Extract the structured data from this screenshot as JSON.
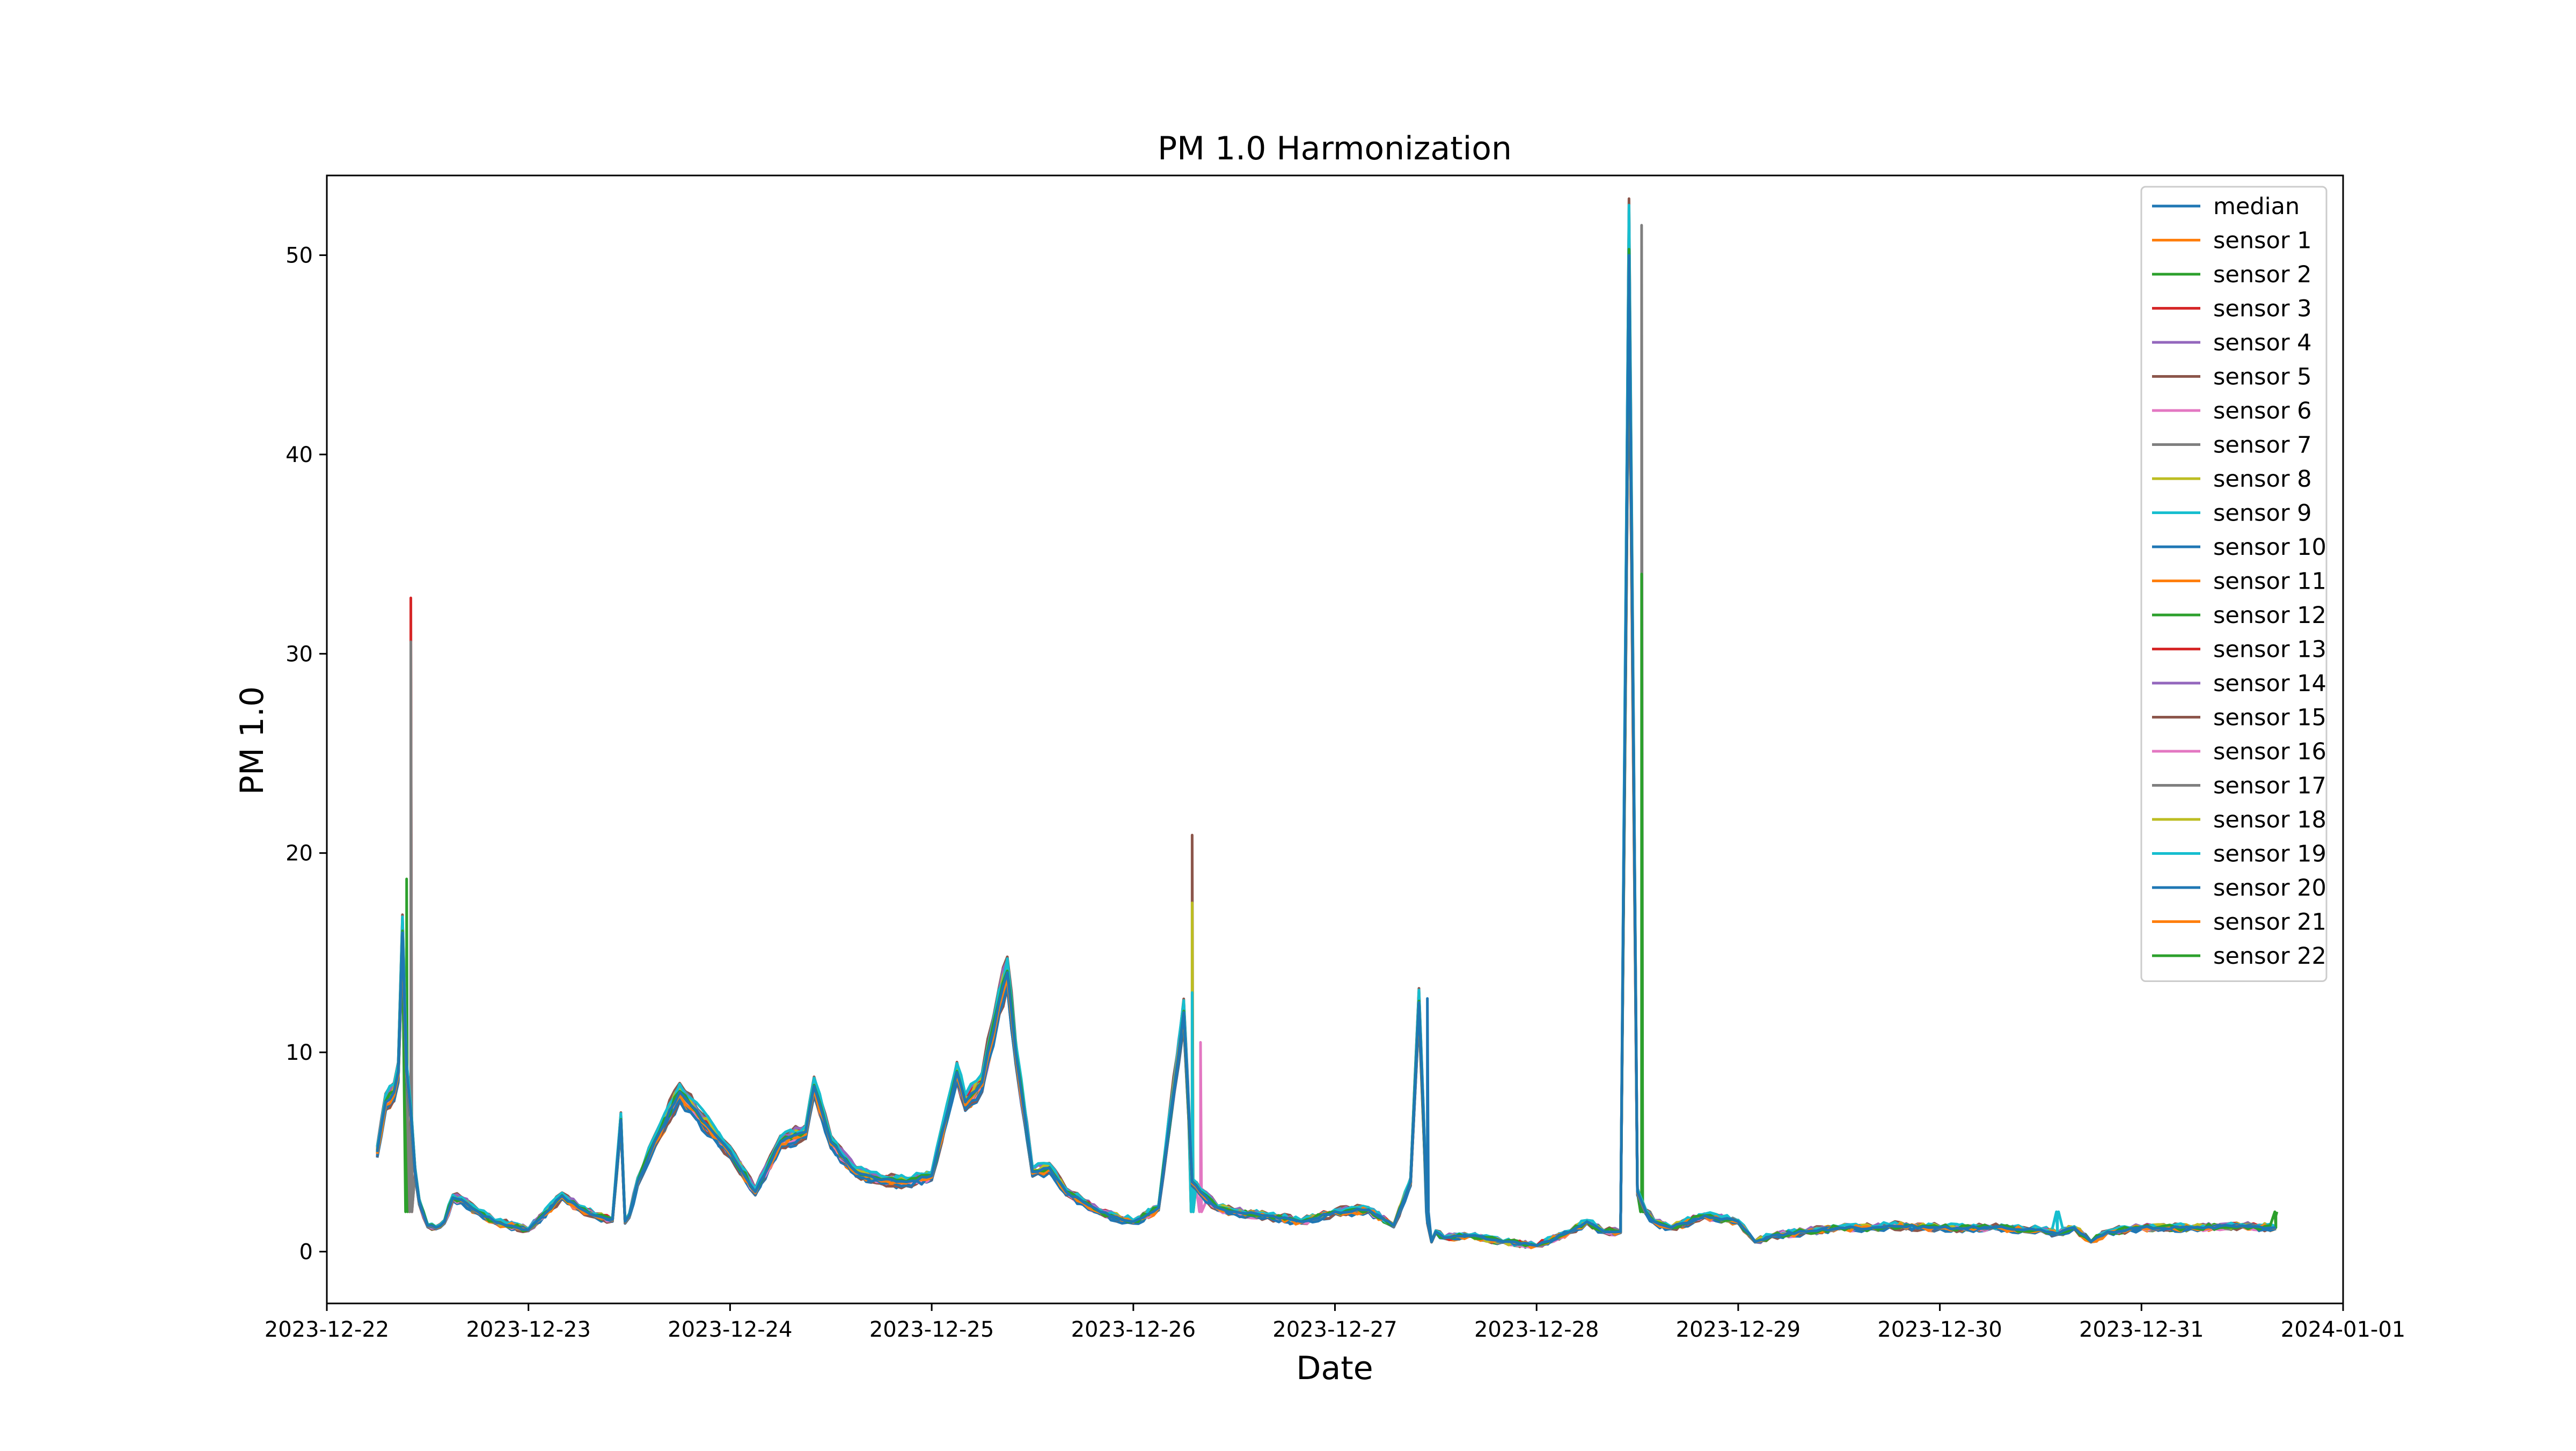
{
  "chart_data": {
    "type": "line",
    "title": "PM 1.0 Harmonization",
    "xlabel": "Date",
    "ylabel": "PM 1.0",
    "x_type": "datetime",
    "xlim": [
      "2023-12-22 00:00",
      "2024-01-01 00:00"
    ],
    "ylim": [
      -2.6,
      54
    ],
    "x_ticks": [
      "2023-12-22",
      "2023-12-23",
      "2023-12-24",
      "2023-12-25",
      "2023-12-26",
      "2023-12-27",
      "2023-12-28",
      "2023-12-29",
      "2023-12-30",
      "2023-12-31",
      "2024-01-01"
    ],
    "y_ticks": [
      0,
      10,
      20,
      30,
      40,
      50
    ],
    "legend": {
      "position": "upper-right"
    },
    "median_x": [
      "2023-12-22 06:00",
      "2023-12-22 07:00",
      "2023-12-22 08:00",
      "2023-12-22 08:30",
      "2023-12-22 09:00",
      "2023-12-22 09:30",
      "2023-12-22 10:00",
      "2023-12-22 10:30",
      "2023-12-22 11:00",
      "2023-12-22 12:00",
      "2023-12-22 13:00",
      "2023-12-22 14:00",
      "2023-12-22 15:00",
      "2023-12-22 16:00",
      "2023-12-22 18:00",
      "2023-12-22 20:00",
      "2023-12-23 00:00",
      "2023-12-23 04:00",
      "2023-12-23 06:00",
      "2023-12-23 08:00",
      "2023-12-23 10:00",
      "2023-12-23 11:00",
      "2023-12-23 11:30",
      "2023-12-23 12:00",
      "2023-12-23 13:00",
      "2023-12-23 15:00",
      "2023-12-23 18:00",
      "2023-12-24 00:00",
      "2023-12-24 03:00",
      "2023-12-24 06:00",
      "2023-12-24 09:00",
      "2023-12-24 10:00",
      "2023-12-24 12:00",
      "2023-12-24 15:00",
      "2023-12-24 18:00",
      "2023-12-24 21:00",
      "2023-12-25 00:00",
      "2023-12-25 03:00",
      "2023-12-25 04:00",
      "2023-12-25 06:00",
      "2023-12-25 08:00",
      "2023-12-25 09:00",
      "2023-12-25 10:00",
      "2023-12-25 12:00",
      "2023-12-25 14:00",
      "2023-12-25 16:00",
      "2023-12-25 18:00",
      "2023-12-25 20:00",
      "2023-12-26 00:00",
      "2023-12-26 03:00",
      "2023-12-26 06:00",
      "2023-12-26 07:00",
      "2023-12-26 07:30",
      "2023-12-26 08:00",
      "2023-12-26 10:00",
      "2023-12-26 12:00",
      "2023-12-26 16:00",
      "2023-12-26 20:00",
      "2023-12-27 00:00",
      "2023-12-27 04:00",
      "2023-12-27 07:00",
      "2023-12-27 09:00",
      "2023-12-27 10:00",
      "2023-12-27 11:00",
      "2023-12-27 11:30",
      "2023-12-27 12:00",
      "2023-12-27 13:00",
      "2023-12-27 16:00",
      "2023-12-27 20:00",
      "2023-12-28 00:00",
      "2023-12-28 04:00",
      "2023-12-28 06:00",
      "2023-12-28 08:00",
      "2023-12-28 10:00",
      "2023-12-28 11:00",
      "2023-12-28 12:00",
      "2023-12-28 12:30",
      "2023-12-28 13:00",
      "2023-12-28 14:00",
      "2023-12-28 16:00",
      "2023-12-28 20:00",
      "2023-12-29 00:00",
      "2023-12-29 02:00",
      "2023-12-29 04:00",
      "2023-12-29 08:00",
      "2023-12-29 12:00",
      "2023-12-29 16:00",
      "2023-12-29 18:00",
      "2023-12-30 00:00",
      "2023-12-30 06:00",
      "2023-12-30 12:00",
      "2023-12-30 14:00",
      "2023-12-30 16:00",
      "2023-12-30 18:00",
      "2023-12-30 20:00",
      "2023-12-31 00:00",
      "2023-12-31 06:00",
      "2023-12-31 12:00",
      "2023-12-31 16:00"
    ],
    "series": [
      {
        "name": "median",
        "color": "#1f77b4",
        "y": [
          5.0,
          7.5,
          8.0,
          9.0,
          16.0,
          9.0,
          7.0,
          4.0,
          2.5,
          1.3,
          1.2,
          1.5,
          2.7,
          2.6,
          2.0,
          1.5,
          1.1,
          2.8,
          2.2,
          1.8,
          1.6,
          6.6,
          1.5,
          1.8,
          3.5,
          5.5,
          8.0,
          5.0,
          3.0,
          5.5,
          6.0,
          8.3,
          5.5,
          4.0,
          3.6,
          3.5,
          3.8,
          9.0,
          7.5,
          8.5,
          12.5,
          14.0,
          10.0,
          4.0,
          4.2,
          3.0,
          2.5,
          2.0,
          1.5,
          2.2,
          12.0,
          3.5,
          3.3,
          3.0,
          2.2,
          2.0,
          1.8,
          1.5,
          2.0,
          2.1,
          1.3,
          3.5,
          12.5,
          1.5,
          0.5,
          1.0,
          0.7,
          0.8,
          0.5,
          0.3,
          1.0,
          1.5,
          1.0,
          1.0,
          50.0,
          3.0,
          2.5,
          2.0,
          1.5,
          1.2,
          1.8,
          1.5,
          0.5,
          0.8,
          1.0,
          1.2,
          1.2,
          1.3,
          1.2,
          1.2,
          1.1,
          0.9,
          1.2,
          0.5,
          1.0,
          1.2,
          1.2,
          1.3,
          1.2
        ]
      },
      {
        "name": "sensor 1",
        "color": "#ff7f0e"
      },
      {
        "name": "sensor 2",
        "color": "#2ca02c"
      },
      {
        "name": "sensor 3",
        "color": "#d62728"
      },
      {
        "name": "sensor 4",
        "color": "#9467bd"
      },
      {
        "name": "sensor 5",
        "color": "#8c564b"
      },
      {
        "name": "sensor 6",
        "color": "#e377c2"
      },
      {
        "name": "sensor 7",
        "color": "#7f7f7f"
      },
      {
        "name": "sensor 8",
        "color": "#bcbd22"
      },
      {
        "name": "sensor 9",
        "color": "#17becf"
      },
      {
        "name": "sensor 10",
        "color": "#1f77b4"
      },
      {
        "name": "sensor 11",
        "color": "#ff7f0e"
      },
      {
        "name": "sensor 12",
        "color": "#2ca02c"
      },
      {
        "name": "sensor 13",
        "color": "#d62728"
      },
      {
        "name": "sensor 14",
        "color": "#9467bd"
      },
      {
        "name": "sensor 15",
        "color": "#8c564b"
      },
      {
        "name": "sensor 16",
        "color": "#e377c2"
      },
      {
        "name": "sensor 17",
        "color": "#7f7f7f"
      },
      {
        "name": "sensor 18",
        "color": "#bcbd22"
      },
      {
        "name": "sensor 19",
        "color": "#17becf"
      },
      {
        "name": "sensor 20",
        "color": "#1f77b4"
      },
      {
        "name": "sensor 21",
        "color": "#ff7f0e"
      },
      {
        "name": "sensor 22",
        "color": "#2ca02c"
      }
    ],
    "peaks": [
      {
        "series": "sensor 3",
        "x": "2023-12-22 10:00",
        "y": 32.8
      },
      {
        "series": "sensor 7",
        "x": "2023-12-22 10:00",
        "y": 30.6
      },
      {
        "series": "sensor 2",
        "x": "2023-12-22 09:30",
        "y": 18.7
      },
      {
        "series": "sensor 5",
        "x": "2023-12-26 07:00",
        "y": 20.9
      },
      {
        "series": "sensor 8",
        "x": "2023-12-26 07:00",
        "y": 17.5
      },
      {
        "series": "sensor 9",
        "x": "2023-12-26 07:00",
        "y": 13.0
      },
      {
        "series": "sensor 6",
        "x": "2023-12-26 08:00",
        "y": 10.5
      },
      {
        "series": "sensor 20",
        "x": "2023-12-27 11:00",
        "y": 12.7
      },
      {
        "series": "sensor 7",
        "x": "2023-12-28 12:30",
        "y": 51.5
      },
      {
        "series": "sensor 12",
        "x": "2023-12-28 12:30",
        "y": 34.0
      },
      {
        "series": "sensor 19",
        "x": "2023-12-30 14:00",
        "y": 1.8
      },
      {
        "series": "sensor 22",
        "x": "2023-12-31 16:00",
        "y": 1.8
      }
    ]
  }
}
